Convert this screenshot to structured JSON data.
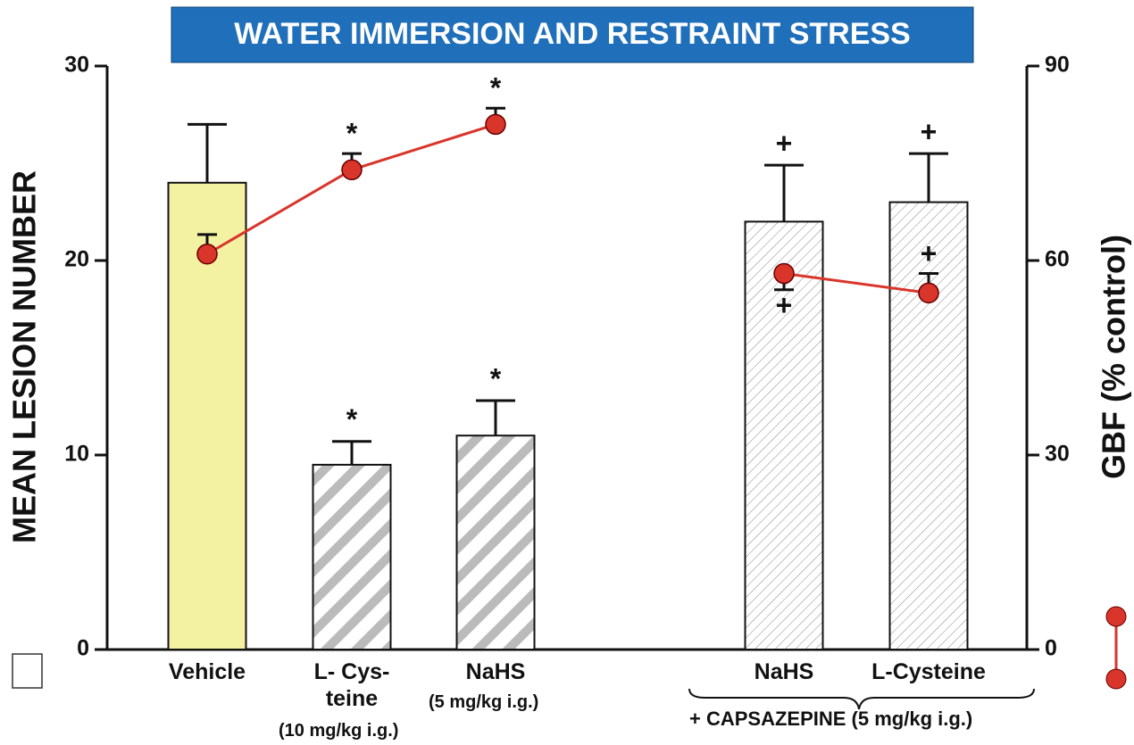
{
  "chart_data": {
    "type": "bar",
    "title": "WATER IMMERSION AND RESTRAINT STRESS",
    "ylabel": "MEAN LESION NUMBER",
    "y2label": "GBF (% control)",
    "categories": [
      "Vehicle",
      "L- Cys-\nteine",
      "NaHS",
      "NaHS",
      "L-Cysteine"
    ],
    "notes": [
      "(10 mg/kg i.g.)",
      "(5 mg/kg i.g.)",
      "+ CAPSAZEPINE (5 mg/kg i.g.)"
    ],
    "ylim": [
      0,
      30
    ],
    "yticks": [
      0,
      10,
      20,
      30
    ],
    "y2lim": [
      0,
      90
    ],
    "y2ticks": [
      0,
      30,
      60,
      90
    ],
    "series": [
      {
        "type": "bar",
        "colors": [
          "#f3f1a2",
          "#ffffff",
          "#ffffff",
          "#ffffff",
          "#ffffff"
        ],
        "patterns": [
          "solid",
          "bands",
          "bands",
          "fine",
          "fine"
        ],
        "values": [
          24,
          9.5,
          11,
          22,
          23
        ],
        "errors": [
          3,
          1.2,
          1.8,
          2.9,
          2.5
        ],
        "markers": [
          null,
          "*",
          "*",
          "+",
          "+"
        ]
      },
      {
        "type": "line",
        "axis": "y2",
        "color": "#d9352b",
        "values": [
          61,
          74,
          81,
          null,
          null
        ],
        "errors": [
          3,
          2.5,
          2.5,
          null,
          null
        ],
        "error_direction": [
          "up",
          "up",
          "up",
          null,
          null
        ],
        "markers": [
          null,
          "*",
          "*",
          null,
          null
        ]
      },
      {
        "type": "line",
        "axis": "y2",
        "color": "#d9352b",
        "values": [
          null,
          null,
          null,
          58,
          55
        ],
        "errors": [
          null,
          null,
          null,
          2.5,
          3
        ],
        "error_direction": [
          null,
          null,
          null,
          "down",
          "up"
        ],
        "markers": [
          null,
          null,
          null,
          "+",
          "+"
        ]
      }
    ]
  }
}
